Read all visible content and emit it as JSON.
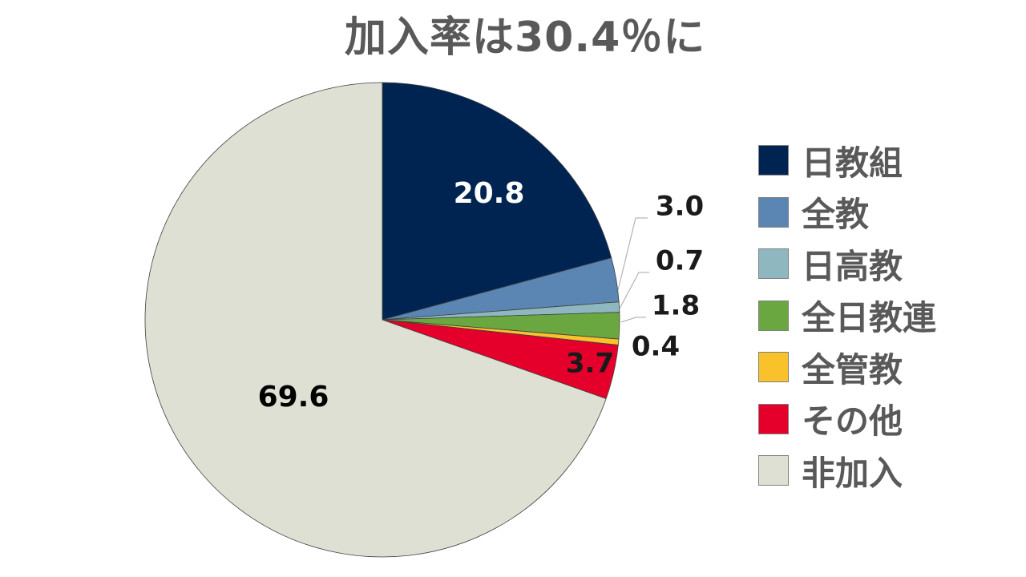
{
  "title": "加入率は30.4％に",
  "chart_data": {
    "type": "pie",
    "title": "加入率は30.4％に",
    "start_angle_deg": 0,
    "direction": "clockwise",
    "slices": [
      {
        "label": "日教組",
        "value": 20.8,
        "display": "20.8",
        "color": "#002452",
        "label_color": "#ffffff",
        "label_placement": "inside"
      },
      {
        "label": "全教",
        "value": 3.0,
        "display": "3.0",
        "color": "#5b86b3",
        "label_color": "#1a1a1a",
        "label_placement": "outside-leader"
      },
      {
        "label": "日高教",
        "value": 0.7,
        "display": "0.7",
        "color": "#8fb7c0",
        "label_color": "#1a1a1a",
        "label_placement": "outside-leader"
      },
      {
        "label": "全日教連",
        "value": 1.8,
        "display": "1.8",
        "color": "#6aa740",
        "label_color": "#1a1a1a",
        "label_placement": "outside-leader"
      },
      {
        "label": "全管教",
        "value": 0.4,
        "display": "0.4",
        "color": "#f9c22b",
        "label_color": "#1a1a1a",
        "label_placement": "outside"
      },
      {
        "label": "その他",
        "value": 3.7,
        "display": "3.7",
        "color": "#e4002b",
        "label_color": "#1a1a1a",
        "label_placement": "edge"
      },
      {
        "label": "非加入",
        "value": 69.6,
        "display": "69.6",
        "color": "#dde0d2",
        "label_color": "#000000",
        "label_placement": "inside"
      }
    ],
    "legend": {
      "position": "right"
    }
  }
}
